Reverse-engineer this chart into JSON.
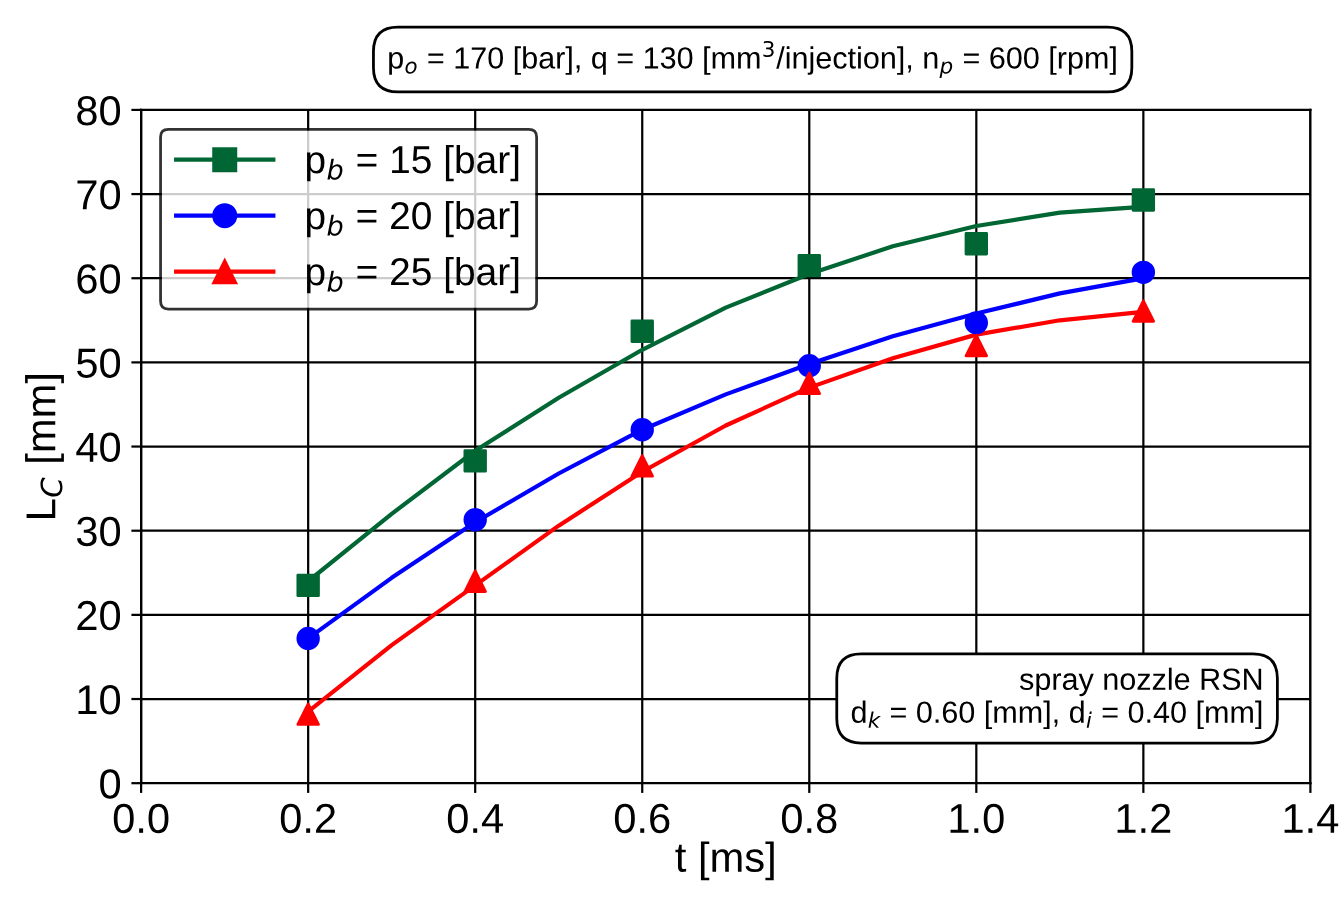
{
  "chart_data": {
    "type": "scatter",
    "xlabel": "t [ms]",
    "ylabel": "L$_{C}$ [mm]",
    "xlim": [
      0.0,
      1.4
    ],
    "xticks": [
      {
        "value": 0.0,
        "label": "0.0"
      },
      {
        "value": 0.2,
        "label": "0.2"
      },
      {
        "value": 0.4,
        "label": "0.4"
      },
      {
        "value": 0.6,
        "label": "0.6"
      },
      {
        "value": 0.8,
        "label": "0.8"
      },
      {
        "value": 1.0,
        "label": "1.0"
      },
      {
        "value": 1.2,
        "label": "1.2"
      },
      {
        "value": 1.4,
        "label": "1.4"
      }
    ],
    "ylim": [
      0,
      80
    ],
    "yticks": [
      0,
      10,
      20,
      30,
      40,
      50,
      60,
      70,
      80
    ],
    "grid": true,
    "legend": "top left",
    "x": [
      0.2,
      0.4,
      0.6,
      0.8,
      1.0,
      1.2
    ],
    "series": [
      {
        "name": "p$_{b}$ = 15 [bar]",
        "color": "#006633",
        "marker": "square",
        "values": [
          23.5,
          38.3,
          53.7,
          61.5,
          64.1,
          69.3
        ]
      },
      {
        "name": "p$_{b}$ = 20 [bar]",
        "color": "#0000ff",
        "marker": "circle",
        "values": [
          17.2,
          31.3,
          42.0,
          49.6,
          54.7,
          60.7
        ]
      },
      {
        "name": "p$_{b}$ = 25 [bar]",
        "color": "#ff0000",
        "marker": "triangle",
        "values": [
          8.2,
          24.0,
          37.7,
          47.5,
          52.0,
          56.1
        ]
      },
      {
        "type": "line",
        "color": "#006633",
        "x": [
          0.2,
          0.3,
          0.4,
          0.5,
          0.6,
          0.7,
          0.8,
          0.9,
          1.0,
          1.1,
          1.2
        ],
        "values": [
          24.0,
          32.0,
          39.5,
          45.8,
          51.5,
          56.5,
          60.5,
          63.8,
          66.2,
          67.8,
          68.5
        ]
      },
      {
        "type": "line",
        "color": "#0000ff",
        "x": [
          0.2,
          0.3,
          0.4,
          0.5,
          0.6,
          0.7,
          0.8,
          0.9,
          1.0,
          1.1,
          1.2
        ],
        "values": [
          17.2,
          24.4,
          31.0,
          36.8,
          42.0,
          46.2,
          49.8,
          53.1,
          55.8,
          58.2,
          60.0
        ]
      },
      {
        "type": "line",
        "color": "#ff0000",
        "x": [
          0.2,
          0.3,
          0.4,
          0.5,
          0.6,
          0.7,
          0.8,
          0.9,
          1.0,
          1.1,
          1.2
        ],
        "values": [
          8.5,
          16.4,
          23.5,
          30.6,
          37.0,
          42.5,
          47.0,
          50.5,
          53.3,
          55.0,
          56.0
        ]
      }
    ],
    "annotations": [
      "p$_{o}$ = 170 [bar], q = 130 [mm$^{3}$/injection], n$_{p}$ = 600 [rpm]",
      "spray nozzle RSN\nd$_{k}$ = 0.60 [mm], d$_{i}$ = 0.40 [mm]"
    ]
  }
}
